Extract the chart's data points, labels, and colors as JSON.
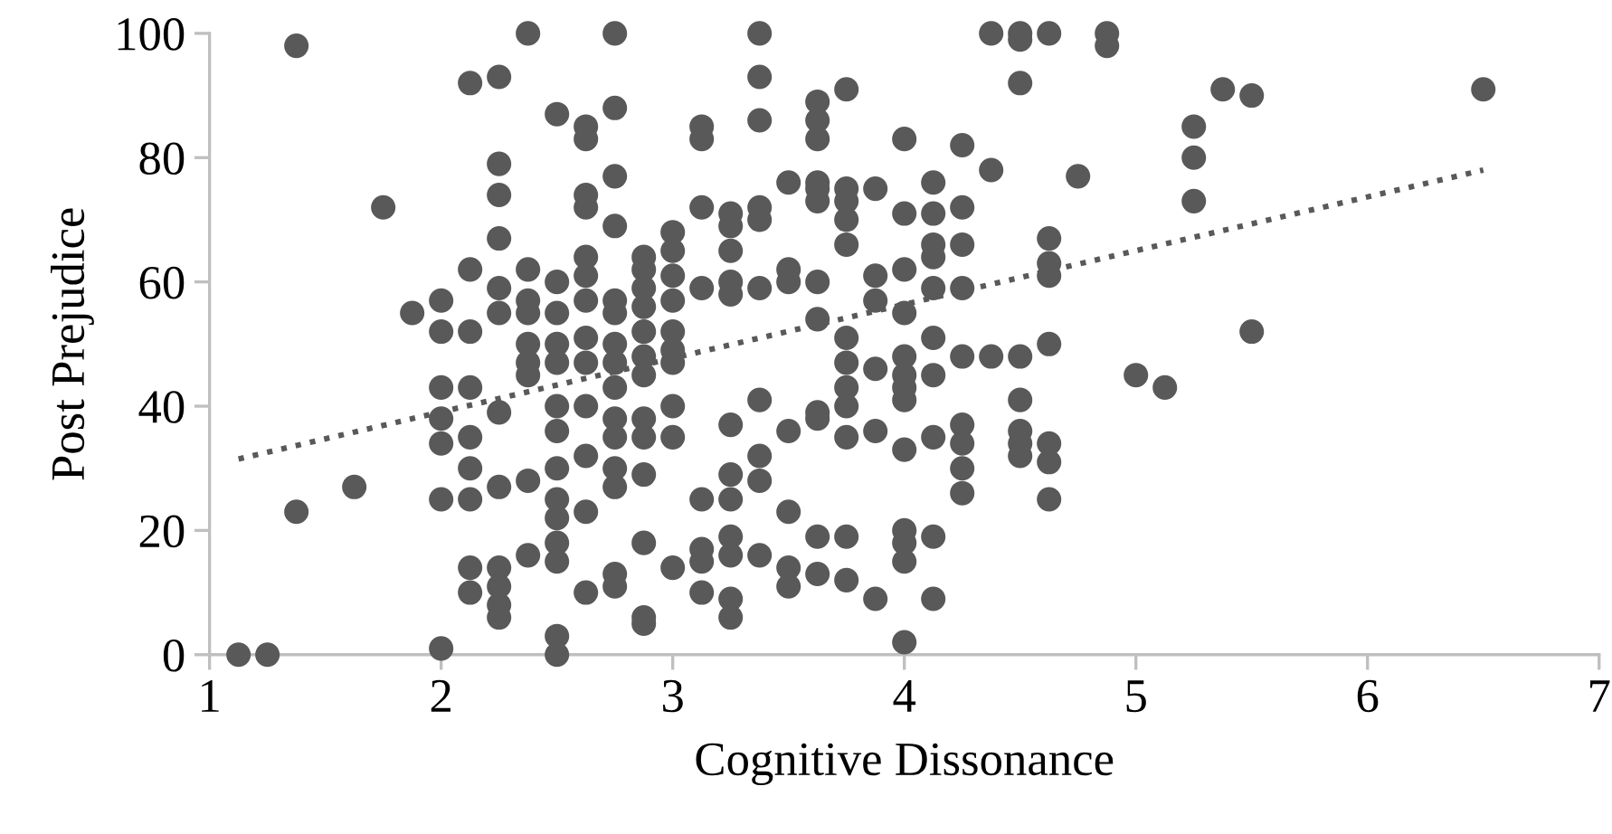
{
  "chart_data": {
    "type": "scatter",
    "xlabel": "Cognitive Dissonance",
    "ylabel": "Post Prejudice",
    "xlim": [
      1,
      7
    ],
    "xticks": [
      1,
      2,
      3,
      4,
      5,
      6,
      7
    ],
    "ylim": [
      0,
      100
    ],
    "yticks": [
      0,
      20,
      40,
      60,
      80,
      100
    ],
    "grid": false,
    "marker": "circle",
    "series": [
      {
        "color": "#595959",
        "x": [
          1.125,
          1.25,
          1.375,
          1.375,
          1.625,
          1.75,
          1.875,
          2,
          2,
          2,
          2,
          2,
          2,
          2,
          2.125,
          2.125,
          2.125,
          2.125,
          2.125,
          2.125,
          2.125,
          2.125,
          2.125,
          2.25,
          2.25,
          2.25,
          2.25,
          2.25,
          2.25,
          2.25,
          2.25,
          2.25,
          2.25,
          2.25,
          2.25,
          2.375,
          2.375,
          2.375,
          2.375,
          2.375,
          2.375,
          2.375,
          2.375,
          2.375,
          2.5,
          2.5,
          2.5,
          2.5,
          2.5,
          2.5,
          2.5,
          2.5,
          2.5,
          2.5,
          2.5,
          2.5,
          2.5,
          2.5,
          2.625,
          2.625,
          2.625,
          2.625,
          2.625,
          2.625,
          2.625,
          2.625,
          2.625,
          2.625,
          2.625,
          2.625,
          2.625,
          2.75,
          2.75,
          2.75,
          2.75,
          2.75,
          2.75,
          2.75,
          2.75,
          2.75,
          2.75,
          2.75,
          2.75,
          2.75,
          2.75,
          2.75,
          2.875,
          2.875,
          2.875,
          2.875,
          2.875,
          2.875,
          2.875,
          2.875,
          2.875,
          2.875,
          2.875,
          2.875,
          2.875,
          3,
          3,
          3,
          3,
          3,
          3,
          3,
          3,
          3,
          3,
          3.125,
          3.125,
          3.125,
          3.125,
          3.125,
          3.125,
          3.125,
          3.125,
          3.25,
          3.25,
          3.25,
          3.25,
          3.25,
          3.25,
          3.25,
          3.25,
          3.25,
          3.25,
          3.25,
          3.25,
          3.375,
          3.375,
          3.375,
          3.375,
          3.375,
          3.375,
          3.375,
          3.375,
          3.375,
          3.375,
          3.5,
          3.5,
          3.5,
          3.5,
          3.5,
          3.5,
          3.5,
          3.625,
          3.625,
          3.625,
          3.625,
          3.625,
          3.625,
          3.625,
          3.625,
          3.625,
          3.625,
          3.625,
          3.625,
          3.75,
          3.75,
          3.75,
          3.75,
          3.75,
          3.75,
          3.75,
          3.75,
          3.75,
          3.75,
          3.75,
          3.75,
          3.875,
          3.875,
          3.875,
          3.875,
          3.875,
          3.875,
          4,
          4,
          4,
          4,
          4,
          4,
          4,
          4,
          4,
          4,
          4,
          4,
          4,
          4.125,
          4.125,
          4.125,
          4.125,
          4.125,
          4.125,
          4.125,
          4.125,
          4.125,
          4.125,
          4.25,
          4.25,
          4.25,
          4.25,
          4.25,
          4.25,
          4.25,
          4.25,
          4.25,
          4.375,
          4.375,
          4.375,
          4.5,
          4.5,
          4.5,
          4.5,
          4.5,
          4.5,
          4.5,
          4.5,
          4.625,
          4.625,
          4.625,
          4.625,
          4.625,
          4.625,
          4.625,
          4.625,
          4.75,
          4.875,
          4.875,
          5,
          5.125,
          5.25,
          5.25,
          5.25,
          5.375,
          5.5,
          5.5,
          6.5
        ],
        "values": [
          0,
          0,
          98,
          23,
          27,
          72,
          55,
          57,
          52,
          43,
          38,
          34,
          25,
          1,
          92,
          62,
          52,
          43,
          35,
          30,
          25,
          14,
          10,
          93,
          79,
          74,
          67,
          59,
          55,
          39,
          27,
          14,
          11,
          8,
          6,
          100,
          62,
          57,
          55,
          50,
          47,
          45,
          28,
          16,
          87,
          60,
          55,
          50,
          47,
          40,
          36,
          30,
          25,
          22,
          18,
          15,
          3,
          0,
          85,
          83,
          74,
          72,
          64,
          61,
          57,
          51,
          47,
          40,
          32,
          23,
          10,
          100,
          88,
          77,
          69,
          57,
          55,
          50,
          47,
          43,
          38,
          35,
          30,
          27,
          13,
          11,
          64,
          62,
          59,
          56,
          52,
          48,
          45,
          38,
          35,
          29,
          18,
          6,
          5,
          68,
          65,
          61,
          57,
          52,
          49,
          47,
          40,
          35,
          14,
          85,
          83,
          72,
          59,
          25,
          17,
          15,
          10,
          71,
          69,
          65,
          60,
          58,
          37,
          29,
          25,
          19,
          16,
          9,
          6,
          100,
          93,
          86,
          72,
          70,
          59,
          41,
          32,
          28,
          16,
          76,
          62,
          60,
          36,
          23,
          14,
          11,
          89,
          86,
          83,
          76,
          75,
          73,
          60,
          54,
          39,
          38,
          19,
          13,
          91,
          75,
          73,
          70,
          66,
          51,
          47,
          43,
          40,
          35,
          19,
          12,
          75,
          61,
          57,
          46,
          36,
          9,
          83,
          71,
          62,
          55,
          48,
          45,
          43,
          41,
          33,
          20,
          18,
          15,
          2,
          76,
          71,
          66,
          64,
          59,
          51,
          45,
          35,
          19,
          9,
          82,
          72,
          66,
          59,
          48,
          37,
          34,
          30,
          26,
          100,
          78,
          48,
          100,
          99,
          92,
          48,
          41,
          36,
          34,
          32,
          100,
          67,
          63,
          61,
          50,
          34,
          31,
          25,
          77,
          100,
          98,
          45,
          43,
          85,
          80,
          73,
          91,
          90,
          52,
          91
        ]
      },
      {
        "type": "line",
        "color": "#595959",
        "line_style": "dotted",
        "marker": "none",
        "x": [
          1.125,
          6.5
        ],
        "values": [
          31.5,
          78
        ]
      }
    ]
  }
}
